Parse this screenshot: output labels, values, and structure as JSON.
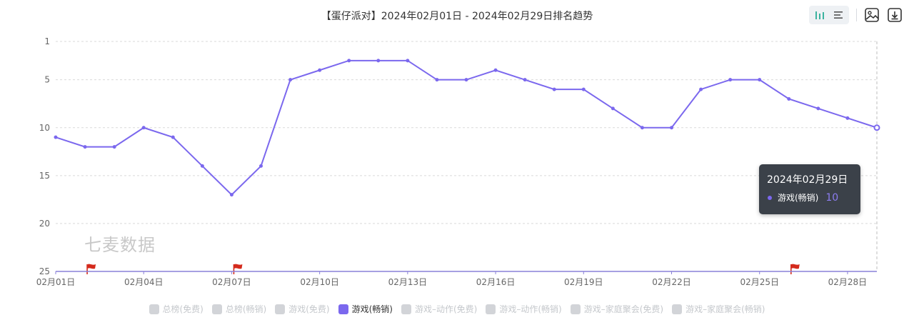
{
  "title": "【蛋仔派对】2024年02月01日 - 2024年02月29日排名趋势",
  "watermark": "七麦数据",
  "toolbar": {
    "buttons": [
      "bar-chart-icon",
      "list-icon",
      "save-image-icon",
      "download-icon"
    ]
  },
  "tooltip": {
    "date": "2024年02月29日",
    "series": "游戏(畅销)",
    "value": "10"
  },
  "legend": [
    {
      "label": "总榜(免费)",
      "active": false
    },
    {
      "label": "总榜(畅销)",
      "active": false
    },
    {
      "label": "游戏(免费)",
      "active": false
    },
    {
      "label": "游戏(畅销)",
      "active": true
    },
    {
      "label": "游戏–动作(免费)",
      "active": false
    },
    {
      "label": "游戏–动作(畅销)",
      "active": false
    },
    {
      "label": "游戏–家庭聚会(免费)",
      "active": false
    },
    {
      "label": "游戏–家庭聚会(畅销)",
      "active": false
    }
  ],
  "colors": {
    "series": "#7b68ee",
    "grid": "#d9d9d9",
    "axis": "#666666",
    "flag": "#d42a1c"
  },
  "chart_data": {
    "type": "line",
    "x": [
      "02月01日",
      "02月02日",
      "02月03日",
      "02月04日",
      "02月05日",
      "02月06日",
      "02月07日",
      "02月08日",
      "02月09日",
      "02月10日",
      "02月11日",
      "02月12日",
      "02月13日",
      "02月14日",
      "02月15日",
      "02月16日",
      "02月17日",
      "02月18日",
      "02月19日",
      "02月20日",
      "02月21日",
      "02月22日",
      "02月23日",
      "02月24日",
      "02月25日",
      "02月26日",
      "02月27日",
      "02月28日",
      "02月29日"
    ],
    "x_tick_labels": [
      "02月01日",
      "02月04日",
      "02月07日",
      "02月10日",
      "02月13日",
      "02月16日",
      "02月19日",
      "02月22日",
      "02月25日",
      "02月28日"
    ],
    "series": [
      {
        "name": "游戏(畅销)",
        "values": [
          11,
          12,
          12,
          10,
          11,
          14,
          17,
          14,
          5,
          4,
          3,
          3,
          3,
          5,
          5,
          4,
          5,
          6,
          6,
          8,
          10,
          10,
          6,
          5,
          5,
          7,
          8,
          9,
          10
        ]
      }
    ],
    "y_ticks": [
      1,
      5,
      10,
      15,
      20,
      25
    ],
    "ylim": [
      1,
      25
    ],
    "y_inverted": true,
    "grid": true,
    "flags": [
      "02月02日",
      "02月07日",
      "02月26日"
    ],
    "crosshair_x": "02月29日",
    "legend_position": "bottom"
  }
}
